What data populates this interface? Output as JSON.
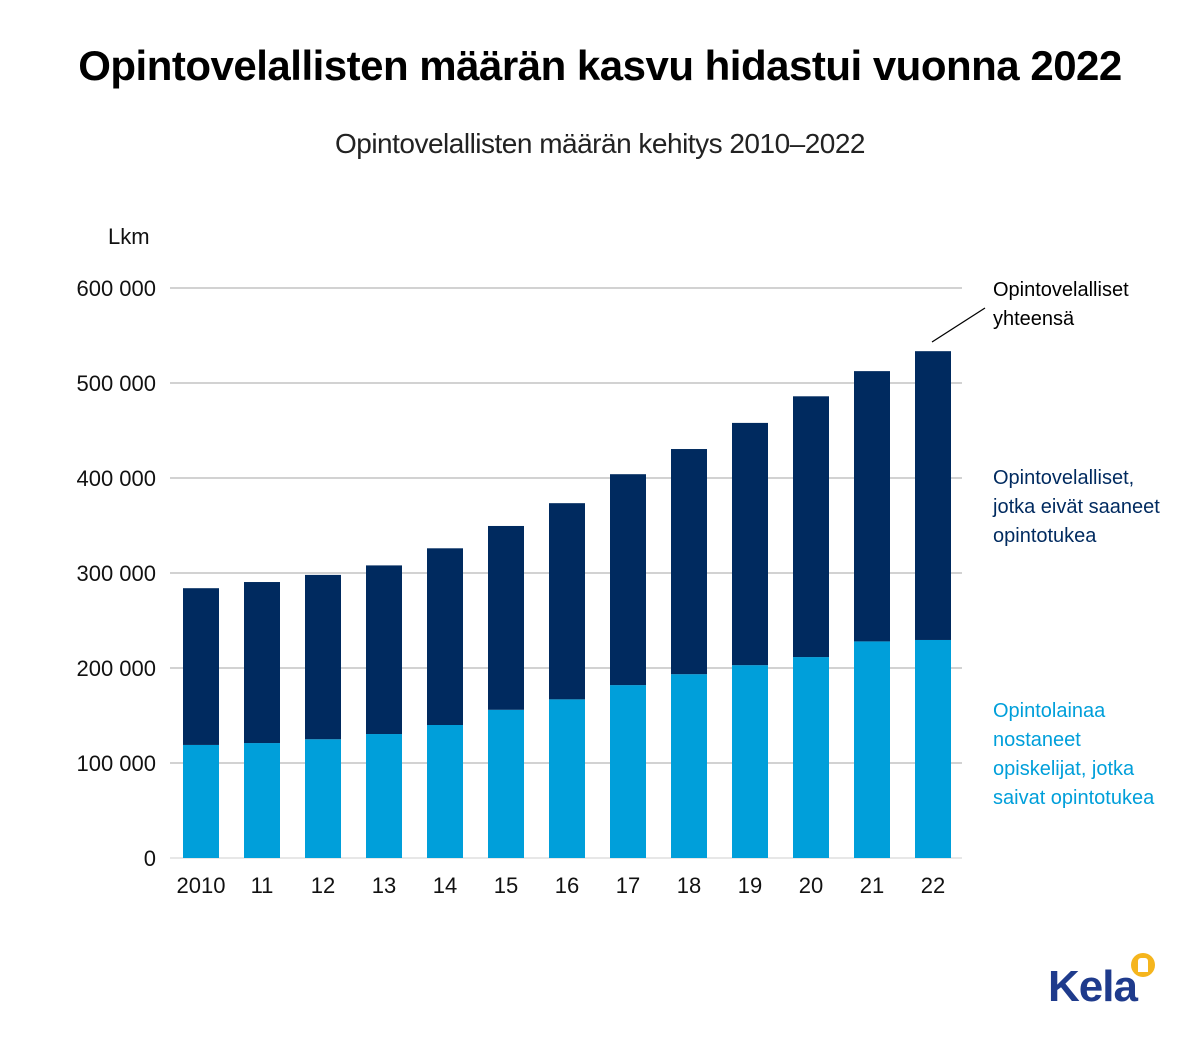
{
  "title": "Opintovelallisten määrän kasvu hidastui vuonna 2022",
  "subtitle": "Opintovelallisten määrän kehitys 2010–2022",
  "logo": "Kela",
  "colors": {
    "dark": "#002a5f",
    "light": "#009fda",
    "grid": "#a6a6a6",
    "logo": "#1f3b8c"
  },
  "chart_data": {
    "type": "bar",
    "stacked": true,
    "ylabel": "Lkm",
    "ylim": [
      0,
      600000
    ],
    "yticks": [
      0,
      100000,
      200000,
      300000,
      400000,
      500000,
      600000
    ],
    "ytick_labels": [
      "0",
      "100 000",
      "200 000",
      "300 000",
      "400 000",
      "500 000",
      "600 000"
    ],
    "categories": [
      "2010",
      "11",
      "12",
      "13",
      "14",
      "15",
      "16",
      "17",
      "18",
      "19",
      "20",
      "21",
      "22"
    ],
    "series": [
      {
        "name": "Opintolainaa nostaneet opiskelijat, jotka saivat opintotukea",
        "color": "#009fda",
        "values": [
          119000,
          121000,
          125000,
          130500,
          140000,
          156000,
          167000,
          182000,
          193500,
          203000,
          211500,
          228000,
          229500
        ]
      },
      {
        "name": "Opintovelalliset, jotka eivät saaneet opintotukea",
        "color": "#002a5f",
        "values": [
          165000,
          169500,
          173000,
          177500,
          186000,
          193500,
          206500,
          222000,
          237000,
          255000,
          274500,
          284500,
          304000
        ]
      }
    ],
    "totals_label": "Opintovelalliset yhteensä",
    "legend": {
      "total": [
        "Opintovelalliset",
        "yhteensä"
      ],
      "dark": [
        "Opintovelalliset,",
        "jotka eivät saaneet",
        "opintotukea"
      ],
      "light": [
        "Opintolainaa",
        "nostaneet",
        "opiskelijat, jotka",
        "saivat opintotukea"
      ]
    },
    "grid": true,
    "legend_placement": "right"
  }
}
